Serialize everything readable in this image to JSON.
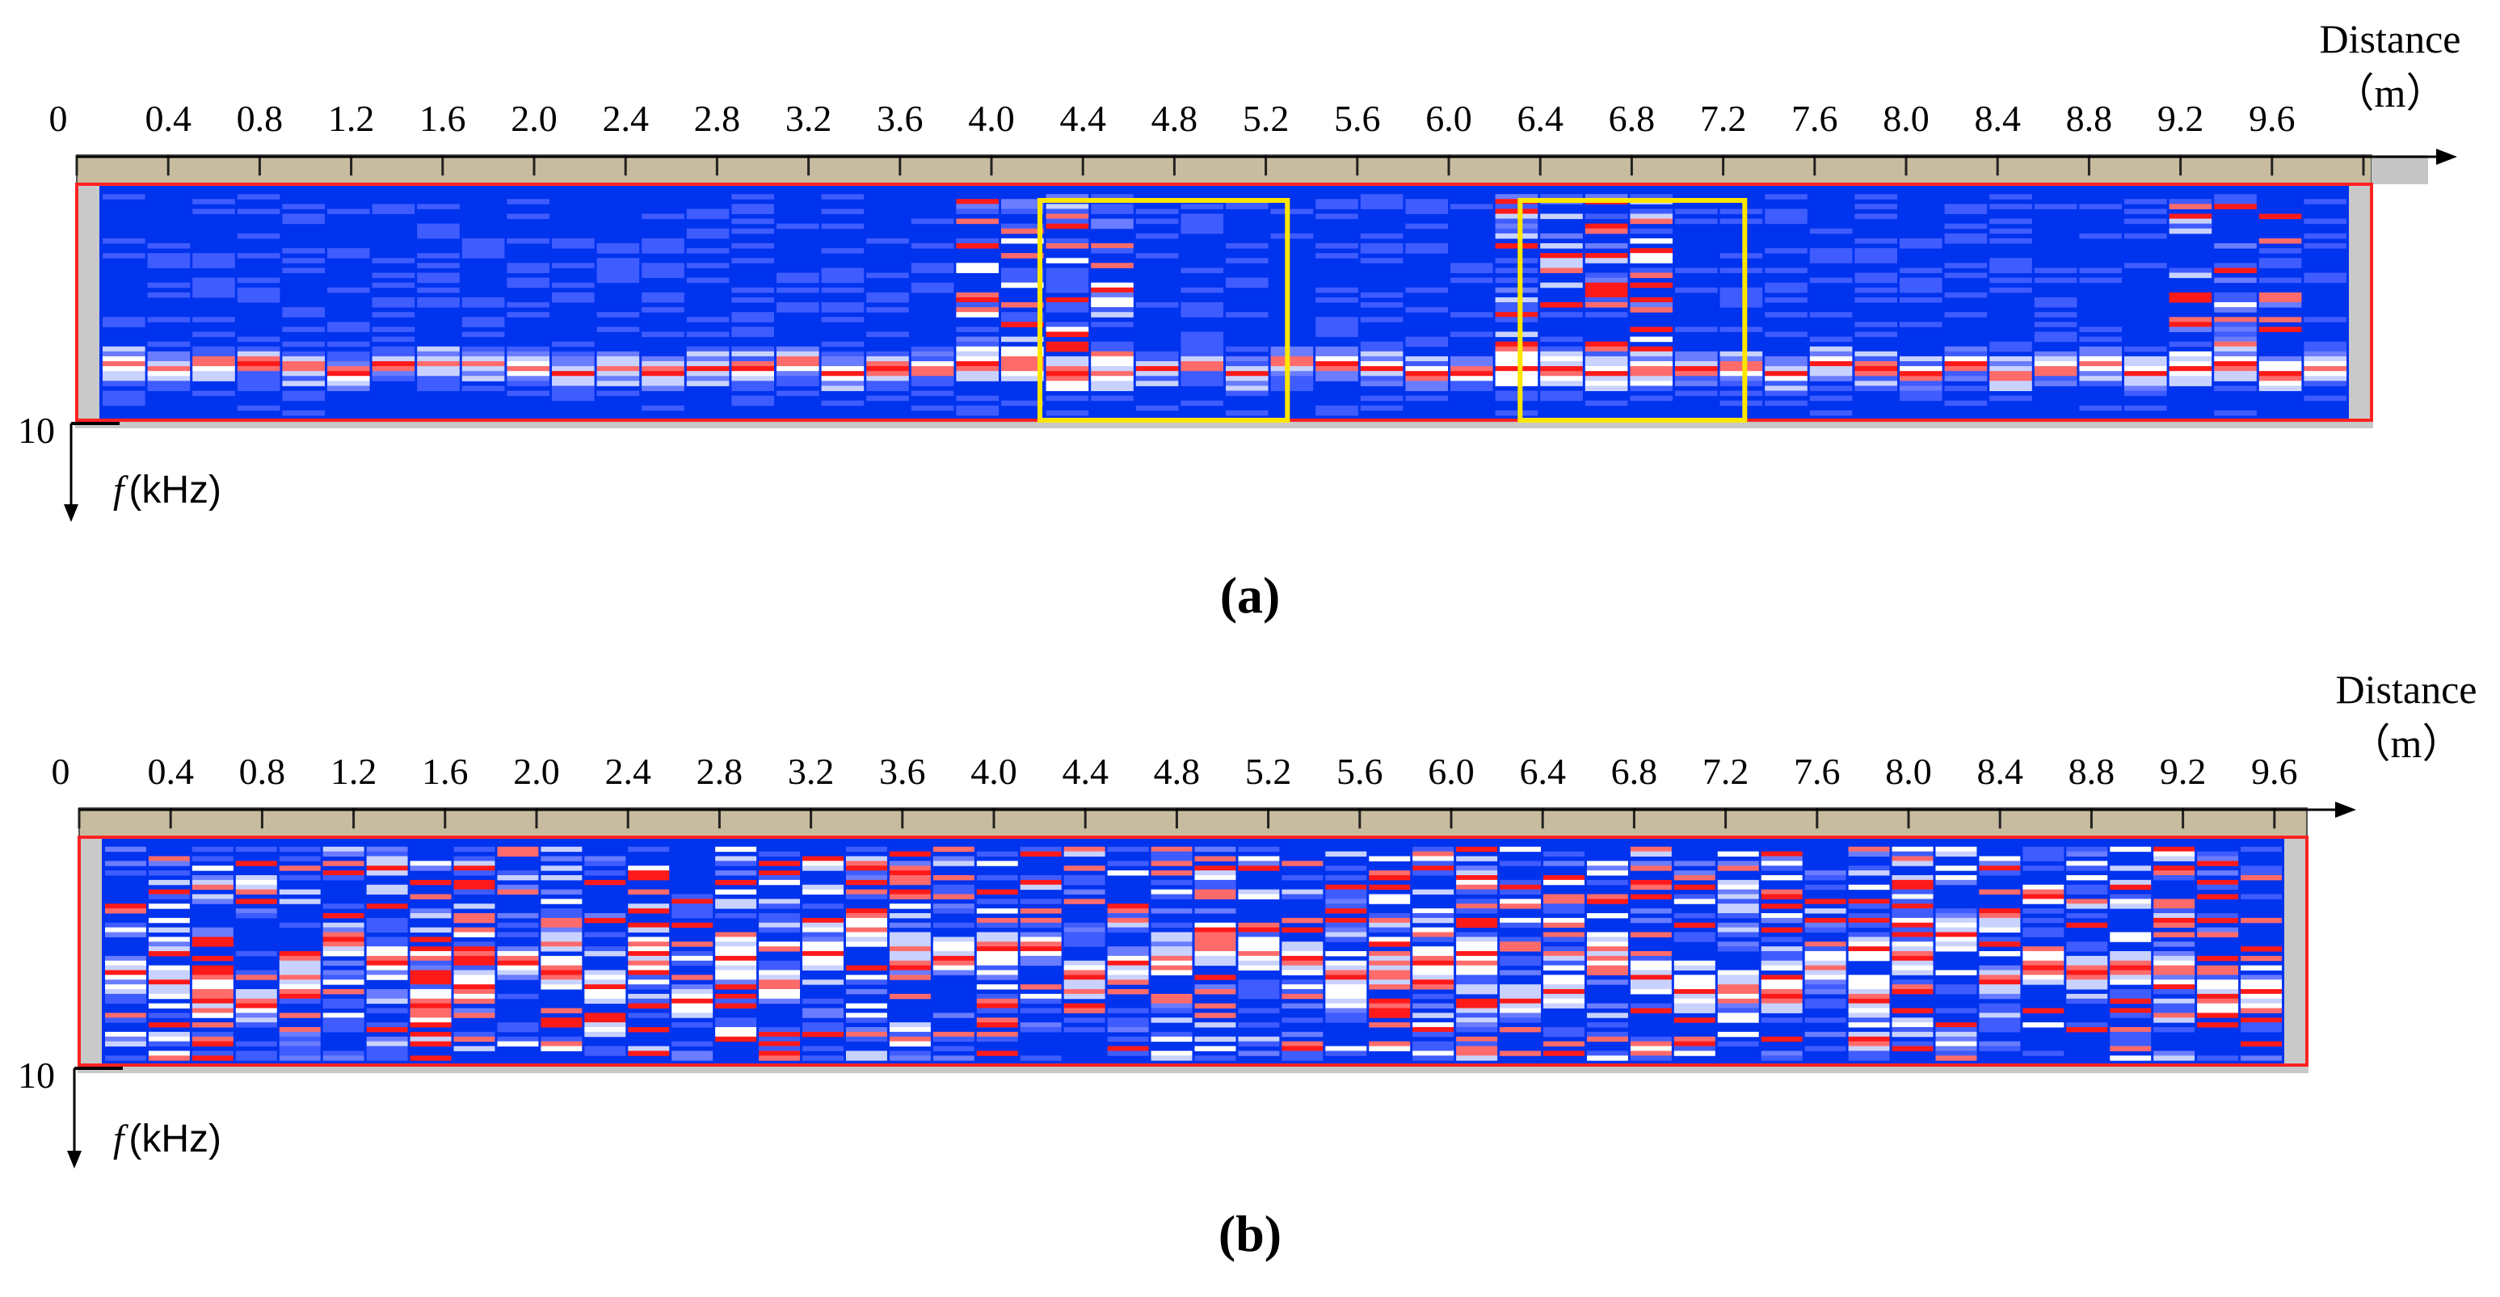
{
  "chart_data": [
    {
      "type": "heatmap",
      "panel_label": "(a)",
      "axis_label_distance": "Distance",
      "axis_unit_distance": "（m）",
      "axis_label_freq_italic": "f",
      "axis_label_freq_unit": "(kHz)",
      "origin_label": "0",
      "ymax_label": "10",
      "x_ticks": [
        "0.4",
        "0.8",
        "1.2",
        "1.6",
        "2.0",
        "2.4",
        "2.8",
        "3.2",
        "3.6",
        "4.0",
        "4.4",
        "4.8",
        "5.2",
        "5.6",
        "6.0",
        "6.4",
        "6.8",
        "7.2",
        "7.6",
        "8.0",
        "8.4",
        "8.8",
        "9.2",
        "9.6"
      ],
      "xlim": [
        0,
        10
      ],
      "ylim": [
        0,
        10
      ],
      "highlight_boxes": [
        {
          "x_range": [
            4.0,
            5.1
          ],
          "color": "#ffe600"
        },
        {
          "x_range": [
            6.1,
            7.1
          ],
          "color": "#ffe600"
        }
      ],
      "seed": 17,
      "main_band_y": 7.7,
      "anomaly_columns": [
        19,
        20,
        21,
        22,
        31,
        32,
        33,
        34,
        46,
        47,
        48
      ]
    },
    {
      "type": "heatmap",
      "panel_label": "(b)",
      "axis_label_distance": "Distance",
      "axis_unit_distance": "（m）",
      "axis_label_freq_italic": "f",
      "axis_label_freq_unit": "(kHz)",
      "origin_label": "0",
      "ymax_label": "10",
      "x_ticks": [
        "0.4",
        "0.8",
        "1.2",
        "1.6",
        "2.0",
        "2.4",
        "2.8",
        "3.2",
        "3.6",
        "4.0",
        "4.4",
        "4.8",
        "5.2",
        "5.6",
        "6.0",
        "6.4",
        "6.8",
        "7.2",
        "7.6",
        "8.0",
        "8.4",
        "8.8",
        "9.2",
        "9.6"
      ],
      "xlim": [
        0,
        10
      ],
      "ylim": [
        0,
        10
      ],
      "highlight_boxes": [],
      "seed": 91,
      "main_band_y": 5.6,
      "anomaly_columns": []
    }
  ],
  "colors": {
    "background": "#0033ee",
    "strong": "#ff1a1a",
    "weak": "#ffffff",
    "mid": "#6a7cff",
    "ruler": "#c8bca0",
    "frame": "#ff2222",
    "side_bar": "#c9c9c9"
  }
}
